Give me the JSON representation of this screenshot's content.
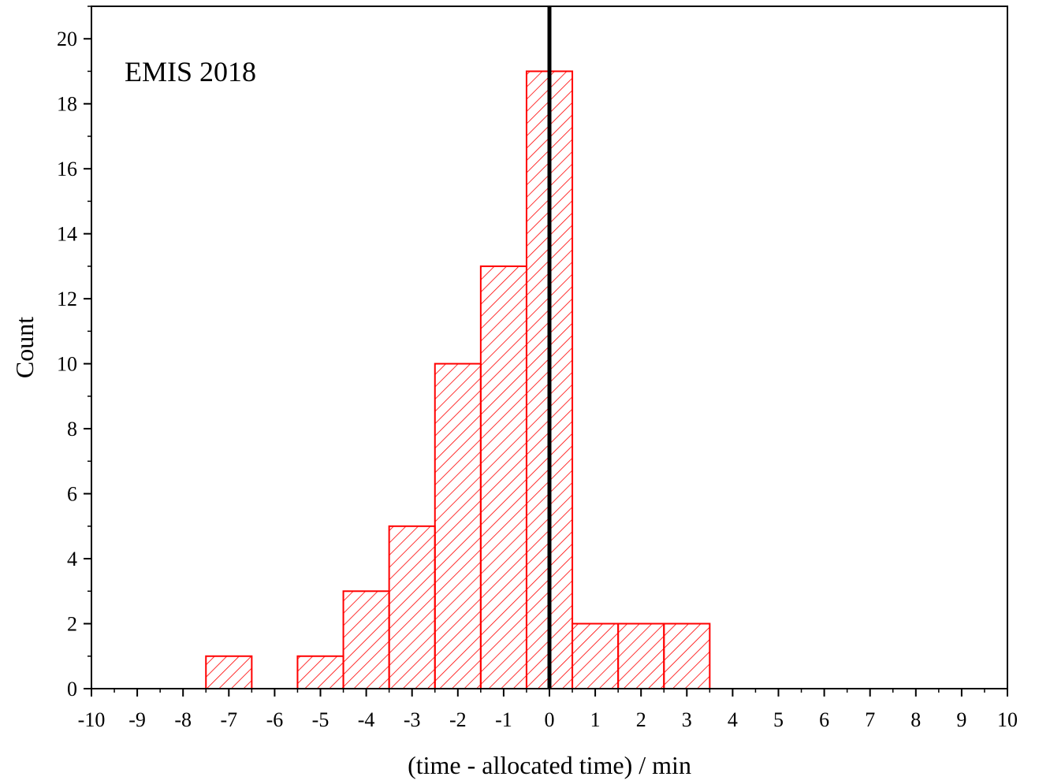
{
  "chart_data": {
    "type": "bar",
    "title": "",
    "annotation": "EMIS 2018",
    "xlabel": "(time - allocated time) / min",
    "ylabel": "Count",
    "xlim": [
      -10,
      10
    ],
    "ylim": [
      0,
      21
    ],
    "x_ticks": [
      -10,
      -9,
      -8,
      -7,
      -6,
      -5,
      -4,
      -3,
      -2,
      -1,
      0,
      1,
      2,
      3,
      4,
      5,
      6,
      7,
      8,
      9,
      10
    ],
    "x_tick_labels": [
      "-10",
      "-9",
      "-8",
      "-7",
      "-6",
      "-5",
      "-4",
      "-3",
      "-2",
      "-1",
      "0",
      "1",
      "2",
      "3",
      "4",
      "5",
      "6",
      "7",
      "8",
      "9",
      "10"
    ],
    "y_ticks": [
      0,
      2,
      4,
      6,
      8,
      10,
      12,
      14,
      16,
      18,
      20
    ],
    "y_tick_labels": [
      "0",
      "2",
      "4",
      "6",
      "8",
      "10",
      "12",
      "14",
      "16",
      "18",
      "20"
    ],
    "bin_width": 1,
    "bars": [
      {
        "center": -7,
        "value": 1
      },
      {
        "center": -5,
        "value": 1
      },
      {
        "center": -4,
        "value": 3
      },
      {
        "center": -3,
        "value": 5
      },
      {
        "center": -2,
        "value": 10
      },
      {
        "center": -1,
        "value": 13
      },
      {
        "center": 0,
        "value": 19
      },
      {
        "center": 1,
        "value": 2
      },
      {
        "center": 2,
        "value": 2
      },
      {
        "center": 3,
        "value": 2
      }
    ],
    "reference_line_x": 0,
    "bar_color": "#ff0000",
    "reference_line_color": "#000000",
    "fill_pattern": "diagonal-hatch",
    "grid": false,
    "legend": "none"
  }
}
